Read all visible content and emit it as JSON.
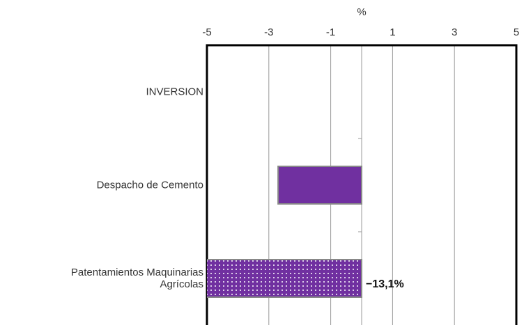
{
  "chart_data": {
    "type": "barh",
    "x_label": "%",
    "categories": [
      "INVERSION",
      "Despacho de Cemento",
      "Patentamientos Maquinarias Agrícolas"
    ],
    "values": [
      null,
      -2.7,
      -13.1
    ],
    "value_labels": [
      null,
      null,
      "−13,1%"
    ],
    "color": "#7030a0",
    "xlim": [
      -5,
      5
    ],
    "xticks": [
      -5,
      -3,
      -1,
      1,
      3,
      5
    ],
    "grid": true
  }
}
